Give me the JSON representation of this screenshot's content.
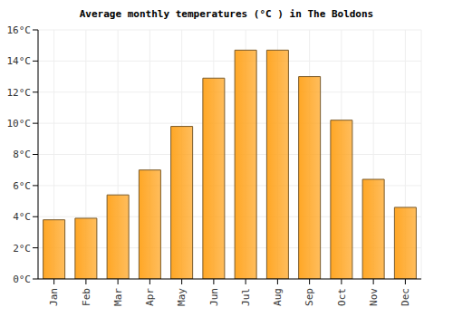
{
  "chart_data": {
    "type": "bar",
    "title": "Average monthly temperatures (°C ) in The Boldons",
    "categories": [
      "Jan",
      "Feb",
      "Mar",
      "Apr",
      "May",
      "Jun",
      "Jul",
      "Aug",
      "Sep",
      "Oct",
      "Nov",
      "Dec"
    ],
    "values": [
      3.8,
      3.9,
      5.4,
      7.0,
      9.8,
      12.9,
      14.7,
      14.7,
      13.0,
      10.2,
      6.4,
      4.6
    ],
    "color": "#ffa726",
    "ylim": [
      0,
      16
    ],
    "yticks": [
      {
        "value": 0,
        "label": "0°C"
      },
      {
        "value": 2,
        "label": "2°C"
      },
      {
        "value": 4,
        "label": "4°C"
      },
      {
        "value": 6,
        "label": "6°C"
      },
      {
        "value": 8,
        "label": "8°C"
      },
      {
        "value": 10,
        "label": "10°C"
      },
      {
        "value": 12,
        "label": "12°C"
      },
      {
        "value": 14,
        "label": "14°C"
      },
      {
        "value": 16,
        "label": "16°C"
      }
    ],
    "grid": true
  }
}
